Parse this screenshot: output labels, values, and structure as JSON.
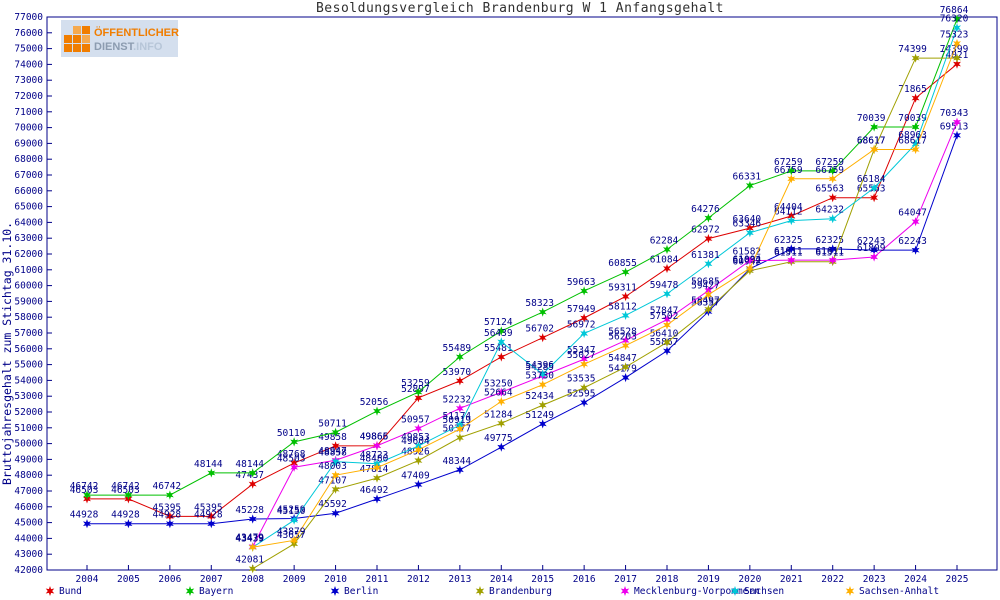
{
  "header": {
    "title": "Besoldungsvergleich Brandenburg W 1 Anfangsgehalt"
  },
  "logo": {
    "line1": "ÖFFENTLICHER",
    "line2a": "DIENST",
    "line2b": ".INFO"
  },
  "colors": {
    "axis": "#000088",
    "tick_label": "#000088",
    "point_label": "#000088",
    "title": "#303030",
    "background": "#ffffff"
  },
  "chart_data": {
    "type": "line",
    "title": "Besoldungsvergleich Brandenburg W 1 Anfangsgehalt",
    "xlabel": "",
    "ylabel": "Bruttojahresgehalt zum Stichtag 31.10.",
    "ylim": [
      42000,
      77000
    ],
    "ytick_step": 1000,
    "grid": false,
    "marker": "star6",
    "point_labels": true,
    "legend_position": "bottom",
    "x": [
      2004,
      2005,
      2006,
      2007,
      2008,
      2009,
      2010,
      2011,
      2012,
      2013,
      2014,
      2015,
      2016,
      2017,
      2018,
      2019,
      2020,
      2021,
      2022,
      2023,
      2024,
      2025
    ],
    "series": [
      {
        "name": "Bund",
        "color": "#dd0000",
        "values": [
          46503,
          46503,
          45395,
          45395,
          47437,
          48768,
          49858,
          49866,
          52897,
          53970,
          55481,
          56702,
          57949,
          59311,
          61084,
          62972,
          63640,
          64404,
          65563,
          65563,
          71865,
          74021
        ]
      },
      {
        "name": "Bayern",
        "color": "#00c000",
        "values": [
          46742,
          46742,
          46742,
          48144,
          48144,
          50110,
          50711,
          52056,
          53259,
          55489,
          57124,
          58323,
          59663,
          60855,
          62284,
          64276,
          66331,
          67259,
          67259,
          70039,
          70039,
          76864
        ]
      },
      {
        "name": "Berlin",
        "color": "#0000cc",
        "values": [
          44928,
          44928,
          44928,
          44928,
          45228,
          45259,
          45592,
          46492,
          47409,
          48344,
          49775,
          51249,
          52595,
          54179,
          55867,
          58357,
          61062,
          62325,
          62325,
          62243,
          62243,
          69513
        ]
      },
      {
        "name": "Brandenburg",
        "color": "#a0a000",
        "values": [
          null,
          null,
          null,
          null,
          42081,
          43657,
          47107,
          47814,
          48926,
          50377,
          51284,
          52434,
          53535,
          54847,
          56410,
          58497,
          60942,
          61511,
          61511,
          68617,
          74399,
          74399
        ]
      },
      {
        "name": "Mecklenburg-Vorpommern",
        "color": "#ee00ee",
        "values": [
          null,
          null,
          null,
          null,
          43479,
          48503,
          48947,
          49865,
          50957,
          52232,
          53250,
          54285,
          55347,
          56528,
          57847,
          59685,
          61582,
          61611,
          61611,
          61809,
          64047,
          70343
        ]
      },
      {
        "name": "Sachsen",
        "color": "#00c8d8",
        "values": [
          null,
          null,
          null,
          null,
          43439,
          45150,
          48858,
          48723,
          49853,
          51174,
          56439,
          54396,
          56972,
          58112,
          59478,
          61381,
          63346,
          64112,
          64232,
          66184,
          68963,
          76320
        ]
      },
      {
        "name": "Sachsen-Anhalt",
        "color": "#ffb000",
        "values": [
          null,
          null,
          null,
          null,
          43439,
          43879,
          48003,
          48480,
          49604,
          50919,
          52664,
          53730,
          55027,
          56203,
          57502,
          59427,
          61094,
          66759,
          66759,
          68617,
          68617,
          75323
        ]
      }
    ]
  }
}
